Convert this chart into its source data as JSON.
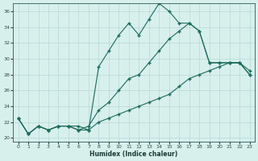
{
  "xlabel": "Humidex (Indice chaleur)",
  "background_color": "#d8f0ec",
  "grid_color": "#b8d8d4",
  "line_color": "#1a6b5a",
  "xlim": [
    -0.5,
    23.5
  ],
  "ylim": [
    19.5,
    37.0
  ],
  "yticks": [
    20,
    22,
    24,
    26,
    28,
    30,
    32,
    34,
    36
  ],
  "xticks": [
    0,
    1,
    2,
    3,
    4,
    5,
    6,
    7,
    8,
    9,
    10,
    11,
    12,
    13,
    14,
    15,
    16,
    17,
    18,
    19,
    20,
    21,
    22,
    23
  ],
  "series": [
    [
      22.5,
      20.5,
      21.5,
      21.0,
      21.5,
      21.5,
      21.5,
      21.0,
      29.0,
      31.0,
      33.0,
      34.5,
      33.0,
      35.0,
      37.0,
      36.0,
      34.5,
      34.5,
      33.5,
      29.5,
      29.5,
      29.5,
      29.5,
      28.0
    ],
    [
      22.5,
      20.5,
      21.5,
      21.0,
      21.5,
      21.5,
      21.0,
      21.5,
      23.5,
      24.5,
      26.0,
      27.5,
      28.0,
      29.5,
      31.0,
      32.5,
      33.5,
      34.5,
      33.5,
      29.5,
      29.5,
      29.5,
      29.5,
      28.0
    ],
    [
      22.5,
      20.5,
      21.5,
      21.0,
      21.5,
      21.5,
      21.0,
      21.0,
      22.0,
      22.5,
      23.0,
      23.5,
      24.0,
      24.5,
      25.0,
      25.5,
      26.5,
      27.5,
      28.0,
      28.5,
      29.0,
      29.5,
      29.5,
      28.5
    ]
  ]
}
